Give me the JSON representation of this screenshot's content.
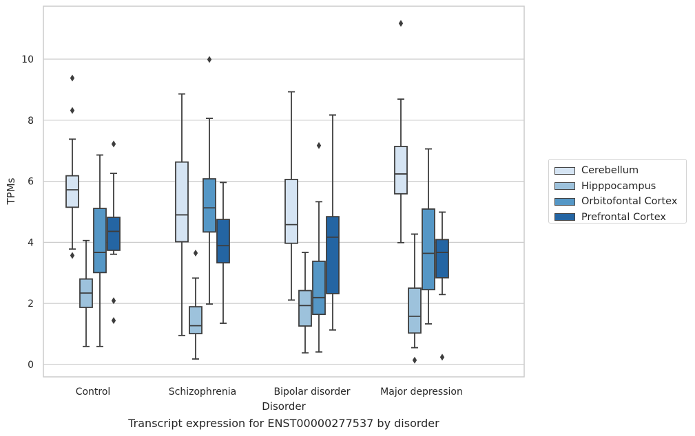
{
  "chart_data": {
    "type": "box",
    "title": "Transcript expression for ENST00000277537 by disorder",
    "xlabel": "Disorder",
    "ylabel": "TPMs",
    "ylim": [
      -0.4,
      11.7
    ],
    "yticks": [
      0,
      2,
      4,
      6,
      8,
      10
    ],
    "grid": "horizontal",
    "legend_position": "right",
    "categories": [
      "Control",
      "Schizophrenia",
      "Bipolar disorder",
      "Major depression"
    ],
    "series": [
      {
        "name": "Cerebellum",
        "color": "#d5e4f3",
        "boxes": [
          {
            "whislo": 3.78,
            "q1": 5.15,
            "med": 5.72,
            "q3": 6.18,
            "whishi": 7.38,
            "fliers": [
              9.38,
              8.32,
              3.57
            ]
          },
          {
            "whislo": 0.95,
            "q1": 4.02,
            "med": 4.9,
            "q3": 6.63,
            "whishi": 8.86,
            "fliers": []
          },
          {
            "whislo": 2.11,
            "q1": 3.97,
            "med": 4.58,
            "q3": 6.06,
            "whishi": 8.93,
            "fliers": []
          },
          {
            "whislo": 3.99,
            "q1": 5.59,
            "med": 6.24,
            "q3": 7.14,
            "whishi": 8.69,
            "fliers": [
              11.17
            ]
          }
        ]
      },
      {
        "name": "Hipppocampus",
        "color": "#9dc2dc",
        "boxes": [
          {
            "whislo": 0.59,
            "q1": 1.87,
            "med": 2.34,
            "q3": 2.8,
            "whishi": 4.06,
            "fliers": []
          },
          {
            "whislo": 0.18,
            "q1": 1.01,
            "med": 1.27,
            "q3": 1.89,
            "whishi": 2.83,
            "fliers": [
              3.65
            ]
          },
          {
            "whislo": 0.38,
            "q1": 1.26,
            "med": 1.93,
            "q3": 2.42,
            "whishi": 3.67,
            "fliers": []
          },
          {
            "whislo": 0.55,
            "q1": 1.03,
            "med": 1.58,
            "q3": 2.5,
            "whishi": 4.27,
            "fliers": [
              0.14
            ]
          }
        ]
      },
      {
        "name": "Orbitofontal Cortex",
        "color": "#5597c6",
        "boxes": [
          {
            "whislo": 0.59,
            "q1": 3.01,
            "med": 3.67,
            "q3": 5.11,
            "whishi": 6.86,
            "fliers": []
          },
          {
            "whislo": 1.98,
            "q1": 4.34,
            "med": 5.13,
            "q3": 6.08,
            "whishi": 8.06,
            "fliers": [
              9.99
            ]
          },
          {
            "whislo": 0.41,
            "q1": 1.64,
            "med": 2.19,
            "q3": 3.38,
            "whishi": 5.33,
            "fliers": [
              7.17
            ]
          },
          {
            "whislo": 1.33,
            "q1": 2.45,
            "med": 3.64,
            "q3": 5.09,
            "whishi": 7.06,
            "fliers": []
          }
        ]
      },
      {
        "name": "Prefrontal Cortex",
        "color": "#2465a3",
        "boxes": [
          {
            "whislo": 3.61,
            "q1": 3.74,
            "med": 4.36,
            "q3": 4.82,
            "whishi": 6.26,
            "fliers": [
              7.22,
              2.09,
              1.44
            ]
          },
          {
            "whislo": 1.35,
            "q1": 3.33,
            "med": 3.89,
            "q3": 4.75,
            "whishi": 5.96,
            "fliers": []
          },
          {
            "whislo": 1.13,
            "q1": 2.32,
            "med": 4.17,
            "q3": 4.84,
            "whishi": 8.17,
            "fliers": []
          },
          {
            "whislo": 2.29,
            "q1": 2.84,
            "med": 3.67,
            "q3": 4.09,
            "whishi": 4.99,
            "fliers": [
              0.24
            ]
          }
        ]
      }
    ]
  }
}
